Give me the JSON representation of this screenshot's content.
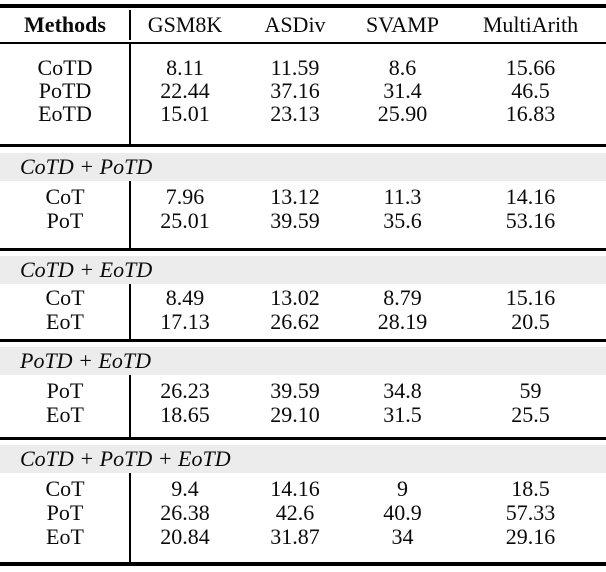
{
  "table": {
    "header": {
      "method_col": "Methods",
      "columns": [
        "GSM8K",
        "ASDiv",
        "SVAMP",
        "MultiArith"
      ]
    },
    "groups": [
      {
        "title": "",
        "rows": [
          {
            "label": "CoTD",
            "values": [
              "8.11",
              "11.59",
              "8.6",
              "15.66"
            ]
          },
          {
            "label": "PoTD",
            "values": [
              "22.44",
              "37.16",
              "31.4",
              "46.5"
            ]
          },
          {
            "label": "EoTD",
            "values": [
              "15.01",
              "23.13",
              "25.90",
              "16.83"
            ]
          }
        ]
      },
      {
        "title": "CoTD + PoTD",
        "rows": [
          {
            "label": "CoT",
            "values": [
              "7.96",
              "13.12",
              "11.3",
              "14.16"
            ]
          },
          {
            "label": "PoT",
            "values": [
              "25.01",
              "39.59",
              "35.6",
              "53.16"
            ]
          }
        ]
      },
      {
        "title": "CoTD + EoTD",
        "rows": [
          {
            "label": "CoT",
            "values": [
              "8.49",
              "13.02",
              "8.79",
              "15.16"
            ]
          },
          {
            "label": "EoT",
            "values": [
              "17.13",
              "26.62",
              "28.19",
              "20.5"
            ]
          }
        ]
      },
      {
        "title": "PoTD + EoTD",
        "rows": [
          {
            "label": "PoT",
            "values": [
              "26.23",
              "39.59",
              "34.8",
              "59"
            ]
          },
          {
            "label": "EoT",
            "values": [
              "18.65",
              "29.10",
              "31.5",
              "25.5"
            ]
          }
        ]
      },
      {
        "title": "CoTD + PoTD + EoTD",
        "rows": [
          {
            "label": "CoT",
            "values": [
              "9.4",
              "14.16",
              "9",
              "18.5"
            ]
          },
          {
            "label": "PoT",
            "values": [
              "26.38",
              "42.6",
              "40.9",
              "57.33"
            ]
          },
          {
            "label": "EoT",
            "values": [
              "20.84",
              "31.87",
              "34",
              "29.16"
            ]
          }
        ]
      }
    ]
  }
}
